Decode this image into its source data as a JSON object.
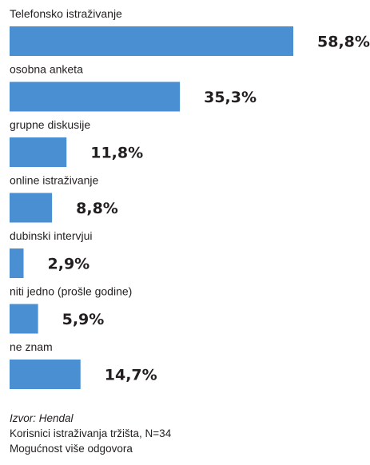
{
  "chart_data": {
    "type": "bar",
    "orientation": "horizontal",
    "categories": [
      "Telefonsko istraživanje",
      "osobna anketa",
      "grupne diskusije",
      "online istraživanje",
      "dubinski intervjui",
      "niti jedno (prošle godine)",
      "ne znam"
    ],
    "values": [
      58.8,
      35.3,
      11.8,
      8.8,
      2.9,
      5.9,
      14.7
    ],
    "value_labels": [
      "58,8%",
      "35,3%",
      "11,8%",
      "8,8%",
      "2,9%",
      "5,9%",
      "14,7%"
    ],
    "title": "",
    "xlabel": "",
    "ylabel": "",
    "xlim": [
      0,
      58.8
    ],
    "grid": false,
    "bar_color": "#4a8fd1"
  },
  "footer": {
    "source": "Izvor: Hendal",
    "line1": "Korisnici istraživanja tržišta, N=34",
    "line2": "Mogućnost više odgovora"
  }
}
